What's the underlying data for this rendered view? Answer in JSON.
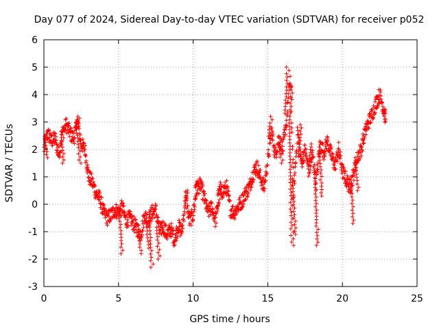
{
  "chart_data": {
    "type": "scatter",
    "title": "Day 077 of 2024, Sidereal Day-to-day VTEC variation (SDTVAR) for receiver p052",
    "xlabel": "GPS time / hours",
    "ylabel": "SDTVAR / TECUs",
    "xlim": [
      0,
      25
    ],
    "ylim": [
      -3,
      6
    ],
    "xticks": [
      0,
      5,
      10,
      15,
      20,
      25
    ],
    "yticks": [
      -3,
      -2,
      -1,
      0,
      1,
      2,
      3,
      4,
      5,
      6
    ],
    "grid": true,
    "marker": "+",
    "series_color": "#ff0000",
    "trace": [
      [
        0.0,
        2.0
      ],
      [
        0.25,
        2.6
      ],
      [
        0.5,
        2.3
      ],
      [
        0.75,
        2.4
      ],
      [
        1.0,
        1.8
      ],
      [
        1.25,
        2.6
      ],
      [
        1.5,
        2.9
      ],
      [
        1.75,
        2.6
      ],
      [
        2.0,
        2.4
      ],
      [
        2.25,
        3.0
      ],
      [
        2.5,
        2.2
      ],
      [
        2.75,
        2.0
      ],
      [
        3.0,
        1.0
      ],
      [
        3.25,
        0.8
      ],
      [
        3.5,
        0.4
      ],
      [
        3.75,
        0.2
      ],
      [
        4.0,
        -0.3
      ],
      [
        4.25,
        -0.5
      ],
      [
        4.5,
        -0.4
      ],
      [
        4.75,
        -0.2
      ],
      [
        5.0,
        -0.3
      ],
      [
        5.25,
        -0.1
      ],
      [
        5.5,
        -0.6
      ],
      [
        5.75,
        -0.5
      ],
      [
        6.0,
        -0.7
      ],
      [
        6.25,
        -0.9
      ],
      [
        6.5,
        -1.1
      ],
      [
        6.75,
        -0.4
      ],
      [
        7.0,
        -0.6
      ],
      [
        7.25,
        -0.3
      ],
      [
        7.5,
        -0.2
      ],
      [
        7.75,
        -1.0
      ],
      [
        8.0,
        -0.8
      ],
      [
        8.25,
        -1.1
      ],
      [
        8.5,
        -0.9
      ],
      [
        8.75,
        -1.3
      ],
      [
        9.0,
        -0.8
      ],
      [
        9.25,
        -1.0
      ],
      [
        9.5,
        0.3
      ],
      [
        9.75,
        -0.6
      ],
      [
        10.0,
        -0.4
      ],
      [
        10.25,
        0.6
      ],
      [
        10.5,
        0.7
      ],
      [
        10.75,
        0.2
      ],
      [
        11.0,
        -0.3
      ],
      [
        11.25,
        -0.1
      ],
      [
        11.5,
        -0.6
      ],
      [
        11.75,
        0.3
      ],
      [
        12.0,
        0.5
      ],
      [
        12.25,
        0.6
      ],
      [
        12.5,
        -0.2
      ],
      [
        12.75,
        -0.3
      ],
      [
        13.0,
        -0.1
      ],
      [
        13.25,
        0.1
      ],
      [
        13.5,
        0.4
      ],
      [
        13.75,
        0.6
      ],
      [
        14.0,
        1.1
      ],
      [
        14.25,
        1.4
      ],
      [
        14.5,
        1.0
      ],
      [
        14.75,
        0.6
      ],
      [
        15.0,
        1.6
      ],
      [
        15.25,
        2.7
      ],
      [
        15.5,
        1.8
      ],
      [
        15.75,
        2.4
      ],
      [
        16.0,
        2.0
      ],
      [
        16.25,
        3.0
      ],
      [
        16.5,
        4.6
      ],
      [
        16.75,
        0.5
      ],
      [
        17.0,
        2.7
      ],
      [
        17.25,
        1.5
      ],
      [
        17.5,
        2.0
      ],
      [
        17.75,
        1.2
      ],
      [
        18.0,
        1.8
      ],
      [
        18.25,
        0.8
      ],
      [
        18.5,
        2.2
      ],
      [
        18.75,
        1.9
      ],
      [
        19.0,
        2.3
      ],
      [
        19.25,
        1.8
      ],
      [
        19.5,
        1.4
      ],
      [
        19.75,
        2.0
      ],
      [
        20.0,
        1.2
      ],
      [
        20.25,
        0.9
      ],
      [
        20.5,
        0.6
      ],
      [
        20.75,
        1.1
      ],
      [
        21.0,
        1.7
      ],
      [
        21.25,
        2.0
      ],
      [
        21.5,
        2.6
      ],
      [
        21.75,
        3.0
      ],
      [
        22.0,
        3.3
      ],
      [
        22.25,
        3.7
      ],
      [
        22.5,
        4.0
      ],
      [
        22.75,
        3.5
      ],
      [
        22.9,
        3.1
      ]
    ],
    "excursions": [
      [
        15.2,
        3.2
      ],
      [
        15.9,
        1.5
      ],
      [
        16.3,
        5.0
      ],
      [
        16.6,
        4.3
      ],
      [
        16.6,
        -1.5
      ],
      [
        16.8,
        -1.1
      ],
      [
        17.2,
        2.9
      ],
      [
        17.9,
        2.2
      ],
      [
        18.3,
        -1.5
      ],
      [
        18.6,
        0.3
      ],
      [
        20.7,
        -0.7
      ],
      [
        21.0,
        0.5
      ],
      [
        7.2,
        -2.3
      ],
      [
        7.7,
        -2.0
      ],
      [
        5.2,
        -1.8
      ],
      [
        6.5,
        -1.8
      ],
      [
        7.0,
        -1.6
      ],
      [
        0.2,
        1.7
      ],
      [
        1.3,
        1.5
      ],
      [
        2.3,
        3.2
      ],
      [
        2.4,
        1.5
      ],
      [
        9.6,
        0.5
      ],
      [
        10.3,
        0.8
      ],
      [
        11.8,
        0.8
      ]
    ]
  }
}
